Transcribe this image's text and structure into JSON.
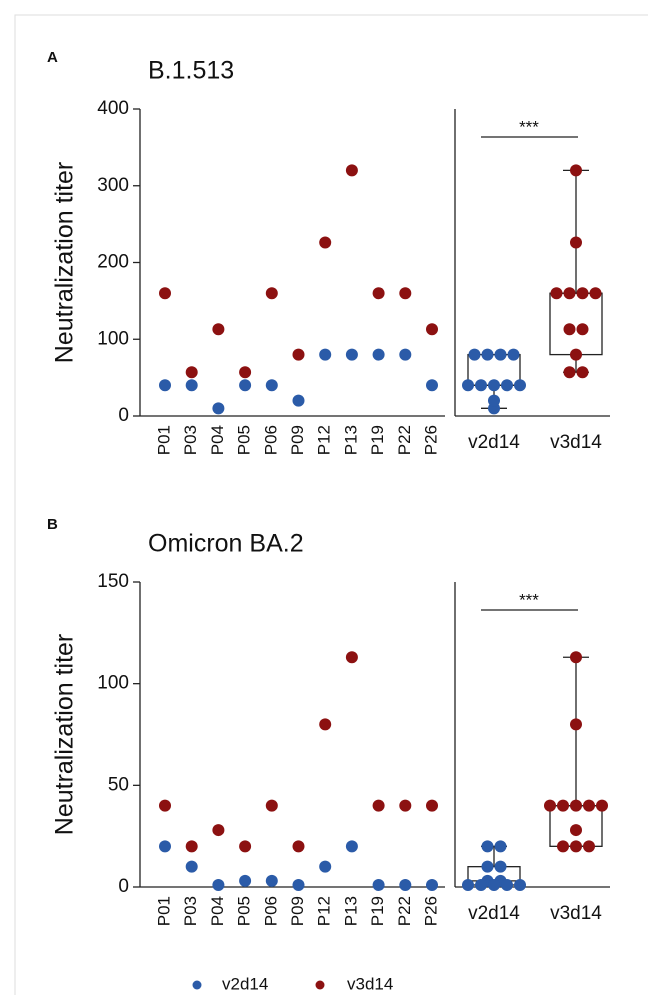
{
  "chart_data": [
    {
      "type": "dot-box",
      "panel": "A",
      "title": "B.1.513",
      "y_label": "Neutralization titer",
      "categories": [
        "P01",
        "P03",
        "P04",
        "P05",
        "P06",
        "P09",
        "P12",
        "P13",
        "P19",
        "P22",
        "P26"
      ],
      "series": [
        {
          "name": "v2d14",
          "color": "#2b5ba8",
          "values": [
            40,
            40,
            10,
            40,
            40,
            20,
            80,
            80,
            80,
            80,
            40
          ]
        },
        {
          "name": "v3d14",
          "color": "#8c1111",
          "values": [
            160,
            57,
            113,
            57,
            160,
            80,
            226,
            320,
            160,
            160,
            113
          ]
        }
      ],
      "boxes": [
        {
          "min": 10,
          "q1": 40,
          "median": 40,
          "q3": 80,
          "max": 80
        },
        {
          "min": 57,
          "q1": 80,
          "median": 160,
          "q3": 160,
          "max": 320
        }
      ],
      "annotation": "***",
      "ylim": [
        0,
        400
      ],
      "yticks": [
        0,
        100,
        200,
        300,
        400
      ]
    },
    {
      "type": "dot-box",
      "panel": "B",
      "title": "Omicron BA.2",
      "y_label": "Neutralization titer",
      "categories": [
        "P01",
        "P03",
        "P04",
        "P05",
        "P06",
        "P09",
        "P12",
        "P13",
        "P19",
        "P22",
        "P26"
      ],
      "series": [
        {
          "name": "v2d14",
          "color": "#2b5ba8",
          "values": [
            20,
            10,
            1,
            3,
            3,
            1,
            10,
            20,
            1,
            1,
            1
          ]
        },
        {
          "name": "v3d14",
          "color": "#8c1111",
          "values": [
            40,
            20,
            28,
            20,
            40,
            20,
            80,
            113,
            40,
            40,
            40
          ]
        }
      ],
      "boxes": [
        {
          "min": 1,
          "q1": 1,
          "median": 3,
          "q3": 10,
          "max": 20
        },
        {
          "min": 20,
          "q1": 20,
          "median": 40,
          "q3": 40,
          "max": 113
        }
      ],
      "annotation": "***",
      "ylim": [
        0,
        150
      ],
      "yticks": [
        0,
        50,
        100,
        150
      ]
    }
  ]
}
